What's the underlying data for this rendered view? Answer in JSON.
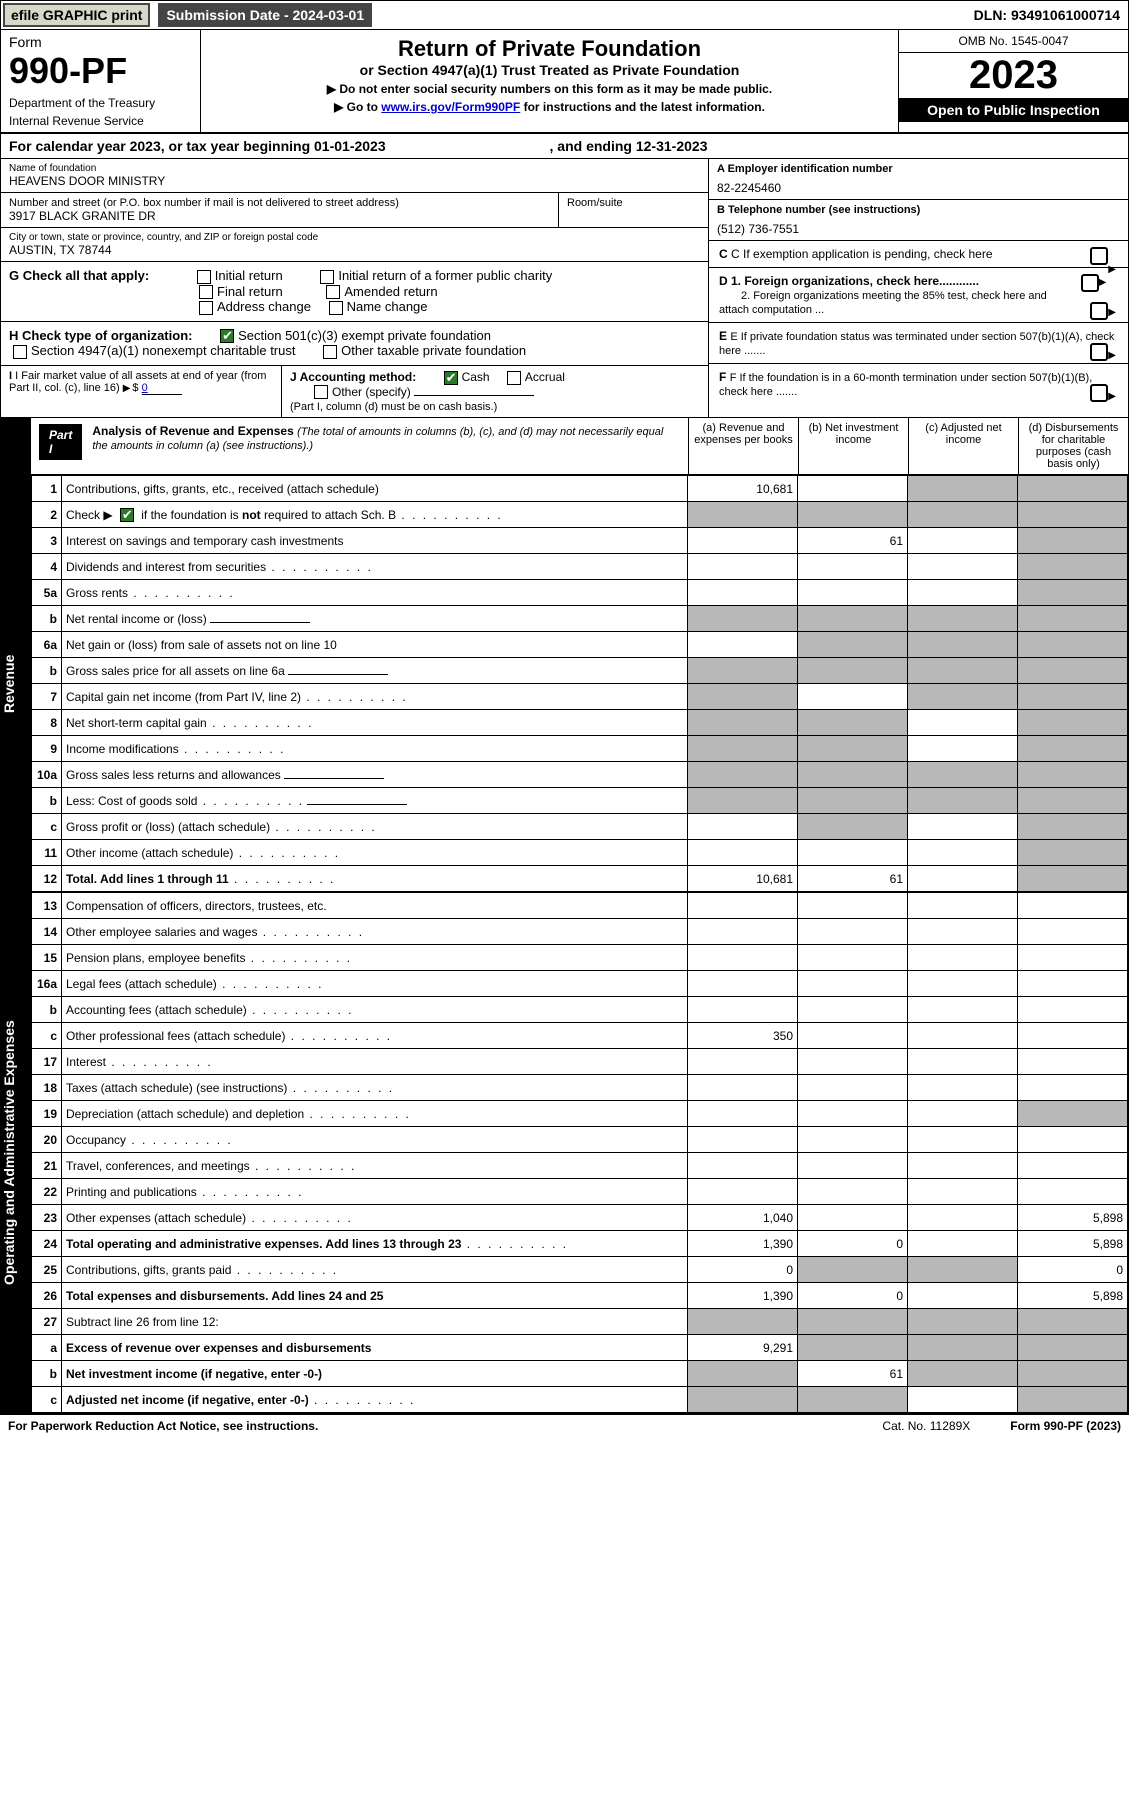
{
  "topbar": {
    "efile": "efile GRAPHIC print",
    "subdate_label": "Submission Date - 2024-03-01",
    "dln": "DLN: 93491061000714"
  },
  "header": {
    "form_label": "Form",
    "form_no": "990-PF",
    "dept": "Department of the Treasury",
    "irs": "Internal Revenue Service",
    "title": "Return of Private Foundation",
    "subtitle": "or Section 4947(a)(1) Trust Treated as Private Foundation",
    "note1": "▶ Do not enter social security numbers on this form as it may be made public.",
    "note2_pre": "▶ Go to ",
    "note2_link": "www.irs.gov/Form990PF",
    "note2_post": " for instructions and the latest information.",
    "omb": "OMB No. 1545-0047",
    "year": "2023",
    "open": "Open to Public Inspection"
  },
  "calyear": {
    "text_pre": "For calendar year 2023, or tax year beginning 01-01-2023",
    "text_mid": ", and ending 12-31-2023"
  },
  "id": {
    "name_lbl": "Name of foundation",
    "name": "HEAVENS DOOR MINISTRY",
    "addr_lbl": "Number and street (or P.O. box number if mail is not delivered to street address)",
    "addr": "3917 BLACK GRANITE DR",
    "room_lbl": "Room/suite",
    "city_lbl": "City or town, state or province, country, and ZIP or foreign postal code",
    "city": "AUSTIN, TX  78744",
    "A_lbl": "A Employer identification number",
    "A": "82-2245460",
    "B_lbl": "B Telephone number (see instructions)",
    "B": "(512) 736-7551",
    "C": "C If exemption application is pending, check here",
    "D1": "D 1. Foreign organizations, check here............",
    "D2": "2. Foreign organizations meeting the 85% test, check here and attach computation ...",
    "E": "E  If private foundation status was terminated under section 507(b)(1)(A), check here .......",
    "F": "F  If the foundation is in a 60-month termination under section 507(b)(1)(B), check here .......",
    "G": "G Check all that apply:",
    "G_opts": [
      "Initial return",
      "Initial return of a former public charity",
      "Final return",
      "Amended return",
      "Address change",
      "Name change"
    ],
    "H": "H Check type of organization:",
    "H1": "Section 501(c)(3) exempt private foundation",
    "H2": "Section 4947(a)(1) nonexempt charitable trust",
    "H3": "Other taxable private foundation",
    "I": "I Fair market value of all assets at end of year (from Part II, col. (c), line 16)",
    "I_val": "0",
    "J": "J Accounting method:",
    "J_cash": "Cash",
    "J_accrual": "Accrual",
    "J_other": "Other (specify)",
    "J_note": "(Part I, column (d) must be on cash basis.)"
  },
  "part1": {
    "label": "Part I",
    "title": "Analysis of Revenue and Expenses",
    "title_note": "(The total of amounts in columns (b), (c), and (d) may not necessarily equal the amounts in column (a) (see instructions).)",
    "col_a": "(a)   Revenue and expenses per books",
    "col_b": "(b)   Net investment income",
    "col_c": "(c)   Adjusted net income",
    "col_d": "(d)  Disbursements for charitable purposes (cash basis only)"
  },
  "sides": {
    "revenue": "Revenue",
    "expenses": "Operating and Administrative Expenses"
  },
  "rows": [
    {
      "n": "1",
      "desc": "Contributions, gifts, grants, etc., received (attach schedule)",
      "a": "10,681",
      "b": "",
      "c": "g",
      "d": "g"
    },
    {
      "n": "2",
      "desc": "Check ▶ ☑ if the foundation is not required to attach Sch. B",
      "dots": true,
      "a": "g",
      "b": "g",
      "c": "g",
      "d": "g"
    },
    {
      "n": "3",
      "desc": "Interest on savings and temporary cash investments",
      "a": "",
      "b": "61",
      "c": "",
      "d": "g"
    },
    {
      "n": "4",
      "desc": "Dividends and interest from securities",
      "dots": true,
      "a": "",
      "b": "",
      "c": "",
      "d": "g"
    },
    {
      "n": "5a",
      "desc": "Gross rents",
      "dots": true,
      "a": "",
      "b": "",
      "c": "",
      "d": "g"
    },
    {
      "n": "b",
      "desc": "Net rental income or (loss)",
      "inline": true,
      "a": "g",
      "b": "g",
      "c": "g",
      "d": "g"
    },
    {
      "n": "6a",
      "desc": "Net gain or (loss) from sale of assets not on line 10",
      "a": "",
      "b": "g",
      "c": "g",
      "d": "g"
    },
    {
      "n": "b",
      "desc": "Gross sales price for all assets on line 6a",
      "inline": true,
      "a": "g",
      "b": "g",
      "c": "g",
      "d": "g"
    },
    {
      "n": "7",
      "desc": "Capital gain net income (from Part IV, line 2)",
      "dots": true,
      "a": "g",
      "b": "",
      "c": "g",
      "d": "g"
    },
    {
      "n": "8",
      "desc": "Net short-term capital gain",
      "dots": true,
      "a": "g",
      "b": "g",
      "c": "",
      "d": "g"
    },
    {
      "n": "9",
      "desc": "Income modifications",
      "dots": true,
      "a": "g",
      "b": "g",
      "c": "",
      "d": "g"
    },
    {
      "n": "10a",
      "desc": "Gross sales less returns and allowances",
      "inline": true,
      "a": "g",
      "b": "g",
      "c": "g",
      "d": "g"
    },
    {
      "n": "b",
      "desc": "Less: Cost of goods sold",
      "dots": true,
      "inline": true,
      "a": "g",
      "b": "g",
      "c": "g",
      "d": "g"
    },
    {
      "n": "c",
      "desc": "Gross profit or (loss) (attach schedule)",
      "dots": true,
      "a": "",
      "b": "g",
      "c": "",
      "d": "g"
    },
    {
      "n": "11",
      "desc": "Other income (attach schedule)",
      "dots": true,
      "a": "",
      "b": "",
      "c": "",
      "d": "g"
    },
    {
      "n": "12",
      "desc": "Total. Add lines 1 through 11",
      "bold": true,
      "dots": true,
      "a": "10,681",
      "b": "61",
      "c": "",
      "d": "g"
    },
    {
      "n": "13",
      "desc": "Compensation of officers, directors, trustees, etc.",
      "a": "",
      "b": "",
      "c": "",
      "d": ""
    },
    {
      "n": "14",
      "desc": "Other employee salaries and wages",
      "dots": true,
      "a": "",
      "b": "",
      "c": "",
      "d": ""
    },
    {
      "n": "15",
      "desc": "Pension plans, employee benefits",
      "dots": true,
      "a": "",
      "b": "",
      "c": "",
      "d": ""
    },
    {
      "n": "16a",
      "desc": "Legal fees (attach schedule)",
      "dots": true,
      "a": "",
      "b": "",
      "c": "",
      "d": ""
    },
    {
      "n": "b",
      "desc": "Accounting fees (attach schedule)",
      "dots": true,
      "a": "",
      "b": "",
      "c": "",
      "d": ""
    },
    {
      "n": "c",
      "desc": "Other professional fees (attach schedule)",
      "dots": true,
      "a": "350",
      "b": "",
      "c": "",
      "d": ""
    },
    {
      "n": "17",
      "desc": "Interest",
      "dots": true,
      "a": "",
      "b": "",
      "c": "",
      "d": ""
    },
    {
      "n": "18",
      "desc": "Taxes (attach schedule) (see instructions)",
      "dots": true,
      "a": "",
      "b": "",
      "c": "",
      "d": ""
    },
    {
      "n": "19",
      "desc": "Depreciation (attach schedule) and depletion",
      "dots": true,
      "a": "",
      "b": "",
      "c": "",
      "d": "g"
    },
    {
      "n": "20",
      "desc": "Occupancy",
      "dots": true,
      "a": "",
      "b": "",
      "c": "",
      "d": ""
    },
    {
      "n": "21",
      "desc": "Travel, conferences, and meetings",
      "dots": true,
      "a": "",
      "b": "",
      "c": "",
      "d": ""
    },
    {
      "n": "22",
      "desc": "Printing and publications",
      "dots": true,
      "a": "",
      "b": "",
      "c": "",
      "d": ""
    },
    {
      "n": "23",
      "desc": "Other expenses (attach schedule)",
      "dots": true,
      "a": "1,040",
      "b": "",
      "c": "",
      "d": "5,898"
    },
    {
      "n": "24",
      "desc": "Total operating and administrative expenses. Add lines 13 through 23",
      "bold": true,
      "dots": true,
      "a": "1,390",
      "b": "0",
      "c": "",
      "d": "5,898"
    },
    {
      "n": "25",
      "desc": "Contributions, gifts, grants paid",
      "dots": true,
      "a": "0",
      "b": "g",
      "c": "g",
      "d": "0"
    },
    {
      "n": "26",
      "desc": "Total expenses and disbursements. Add lines 24 and 25",
      "bold": true,
      "a": "1,390",
      "b": "0",
      "c": "",
      "d": "5,898"
    },
    {
      "n": "27",
      "desc": "Subtract line 26 from line 12:",
      "a": "g",
      "b": "g",
      "c": "g",
      "d": "g"
    },
    {
      "n": "a",
      "desc": "Excess of revenue over expenses and disbursements",
      "bold": true,
      "a": "9,291",
      "b": "g",
      "c": "g",
      "d": "g"
    },
    {
      "n": "b",
      "desc": "Net investment income (if negative, enter -0-)",
      "bold": true,
      "a": "g",
      "b": "61",
      "c": "g",
      "d": "g"
    },
    {
      "n": "c",
      "desc": "Adjusted net income (if negative, enter -0-)",
      "bold": true,
      "dots": true,
      "a": "g",
      "b": "g",
      "c": "",
      "d": "g"
    }
  ],
  "footer": {
    "left": "For Paperwork Reduction Act Notice, see instructions.",
    "mid": "Cat. No. 11289X",
    "right": "Form 990-PF (2023)"
  },
  "colors": {
    "black": "#000000",
    "grey": "#b8b8b8",
    "efile_bg": "#d8d8c8",
    "link": "#0000cc",
    "check": "#2a7a2a"
  }
}
